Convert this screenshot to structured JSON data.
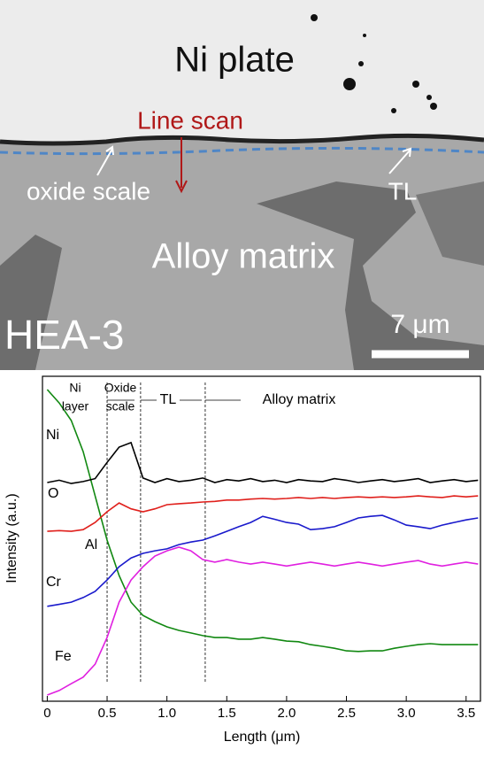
{
  "micrograph": {
    "labels": [
      "Ni plate",
      "Line scan",
      "oxide scale",
      "TL",
      "Alloy matrix",
      "HEA-3",
      "7 μm"
    ]
  },
  "chart_data": {
    "type": "line",
    "xlabel": "Length (μm)",
    "ylabel": "Intensity (a.u.)",
    "xlim": [
      -0.04,
      3.62
    ],
    "xticks": [
      0,
      0.5,
      {
        "value": 1,
        "label": "1.0"
      },
      1.5,
      {
        "value": 2,
        "label": "2.0"
      },
      2.5,
      {
        "value": 3,
        "label": "3.0"
      },
      3.5
    ],
    "ylim": [
      0,
      10
    ],
    "vlines": [
      0.5,
      0.78,
      1.32
    ],
    "annotations": [
      "Ni",
      "layer",
      "Oxide",
      "scale",
      "TL",
      "Alloy matrix"
    ],
    "x": [
      0,
      0.1,
      0.2,
      0.3,
      0.4,
      0.5,
      0.6,
      0.7,
      0.8,
      0.9,
      1,
      1.1,
      1.2,
      1.3,
      1.4,
      1.5,
      1.6,
      1.7,
      1.8,
      1.9,
      2,
      2.1,
      2.2,
      2.3,
      2.4,
      2.5,
      2.6,
      2.7,
      2.8,
      2.9,
      3,
      3.1,
      3.2,
      3.3,
      3.4,
      3.5,
      3.6
    ],
    "series": [
      {
        "name": "Ni",
        "color": "#118811",
        "values": [
          9.59,
          9.18,
          8.64,
          7.68,
          6.32,
          4.96,
          3.87,
          3.05,
          2.64,
          2.45,
          2.29,
          2.18,
          2.1,
          2.02,
          1.96,
          1.96,
          1.91,
          1.91,
          1.96,
          1.91,
          1.85,
          1.83,
          1.74,
          1.69,
          1.63,
          1.55,
          1.53,
          1.55,
          1.55,
          1.63,
          1.69,
          1.74,
          1.77,
          1.74,
          1.74,
          1.74,
          1.74
        ]
      },
      {
        "name": "O",
        "color": "#000000",
        "values": [
          6.73,
          6.8,
          6.7,
          6.76,
          6.85,
          7.35,
          7.82,
          7.96,
          6.87,
          6.73,
          6.85,
          6.76,
          6.8,
          6.87,
          6.73,
          6.82,
          6.78,
          6.85,
          6.76,
          6.8,
          6.73,
          6.82,
          6.78,
          6.76,
          6.85,
          6.8,
          6.73,
          6.78,
          6.82,
          6.76,
          6.8,
          6.85,
          6.73,
          6.78,
          6.82,
          6.76,
          6.8
        ]
      },
      {
        "name": "Al",
        "color": "#e0201c",
        "values": [
          5.23,
          5.25,
          5.23,
          5.28,
          5.5,
          5.83,
          6.1,
          5.92,
          5.83,
          5.92,
          6.05,
          6.08,
          6.1,
          6.13,
          6.15,
          6.19,
          6.19,
          6.22,
          6.24,
          6.22,
          6.24,
          6.27,
          6.24,
          6.27,
          6.24,
          6.27,
          6.29,
          6.27,
          6.29,
          6.27,
          6.29,
          6.32,
          6.29,
          6.27,
          6.32,
          6.29,
          6.32
        ]
      },
      {
        "name": "Cr",
        "color": "#1a1acc",
        "values": [
          2.92,
          2.98,
          3.05,
          3.19,
          3.38,
          3.73,
          4.14,
          4.41,
          4.55,
          4.63,
          4.69,
          4.82,
          4.9,
          4.96,
          5.09,
          5.23,
          5.37,
          5.5,
          5.69,
          5.6,
          5.5,
          5.45,
          5.28,
          5.31,
          5.37,
          5.5,
          5.64,
          5.69,
          5.72,
          5.58,
          5.42,
          5.37,
          5.31,
          5.42,
          5.5,
          5.58,
          5.64
        ]
      },
      {
        "name": "Fe",
        "color": "#e020e0",
        "values": [
          0.19,
          0.33,
          0.54,
          0.74,
          1.14,
          1.96,
          3.05,
          3.73,
          4.14,
          4.47,
          4.63,
          4.74,
          4.63,
          4.36,
          4.28,
          4.36,
          4.28,
          4.22,
          4.28,
          4.22,
          4.16,
          4.22,
          4.28,
          4.22,
          4.16,
          4.22,
          4.28,
          4.22,
          4.16,
          4.22,
          4.28,
          4.33,
          4.22,
          4.16,
          4.22,
          4.28,
          4.22
        ]
      }
    ]
  }
}
